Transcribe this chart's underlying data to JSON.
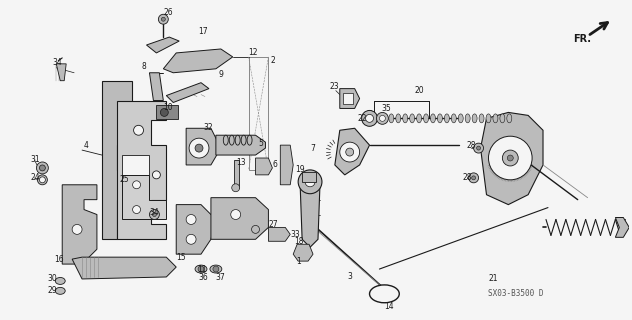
{
  "bg_color": "#f5f5f5",
  "diagram_color": "#1a1a1a",
  "fig_width": 6.32,
  "fig_height": 3.2,
  "dpi": 100,
  "watermark": "SX03-B3500 D",
  "fr_label": "FR.",
  "lc": "#1a1a1a"
}
